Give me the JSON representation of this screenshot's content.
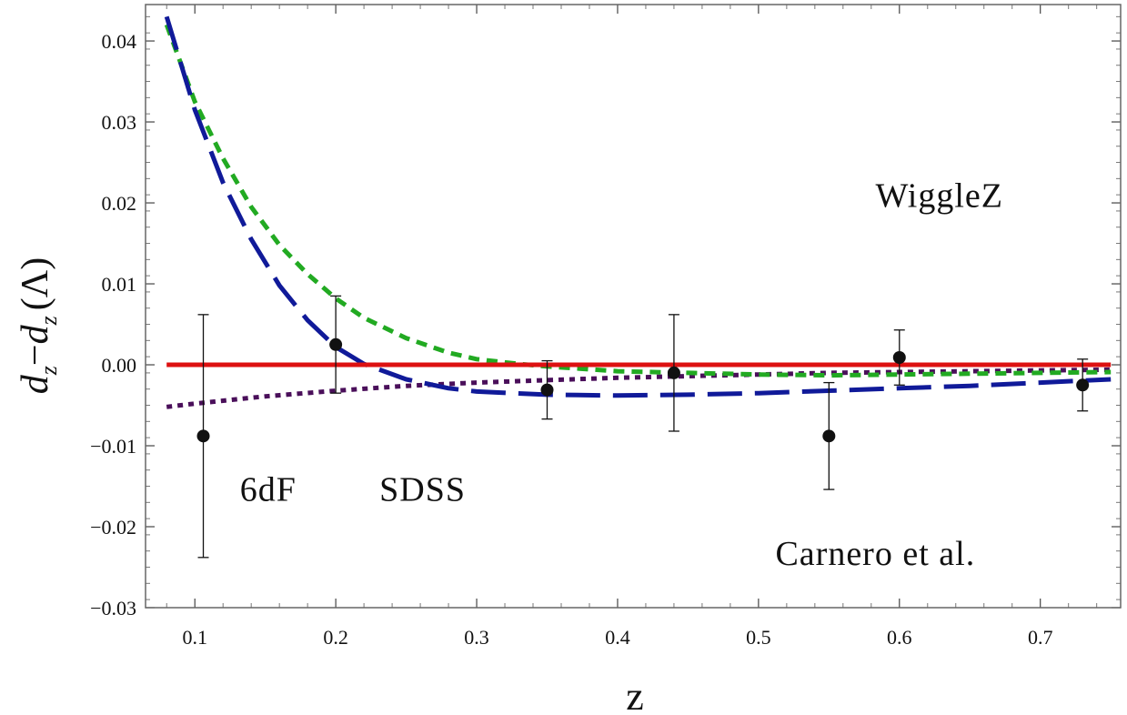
{
  "chart_data": {
    "type": "line",
    "title": "",
    "xlabel": "z",
    "ylabel_parts": {
      "d": "d",
      "sub": "z",
      "minus": "−",
      "lambda": "(Λ)"
    },
    "xlim": [
      0.065,
      0.757
    ],
    "ylim": [
      -0.03,
      0.0445
    ],
    "xticks": [
      0.1,
      0.2,
      0.3,
      0.4,
      0.5,
      0.6,
      0.7
    ],
    "xtick_labels": [
      "0.1",
      "0.2",
      "0.3",
      "0.4",
      "0.5",
      "0.6",
      "0.7"
    ],
    "yticks": [
      0.04,
      0.03,
      0.02,
      0.01,
      0.0,
      -0.01,
      -0.02,
      -0.03
    ],
    "ytick_labels": [
      "0.04",
      "0.03",
      "0.02",
      "0.01",
      "0.00",
      "−0.01",
      "−0.02",
      "−0.03"
    ],
    "series": [
      {
        "name": "LCDM reference",
        "style": "solid",
        "color": "#dd1111",
        "x": [
          0.08,
          0.75
        ],
        "y": [
          0.0,
          0.0
        ]
      },
      {
        "name": "green short-dashed model",
        "style": "short-dash",
        "color": "#22aa22",
        "x": [
          0.08,
          0.1,
          0.12,
          0.14,
          0.16,
          0.18,
          0.2,
          0.22,
          0.25,
          0.28,
          0.3,
          0.33,
          0.35,
          0.4,
          0.45,
          0.5,
          0.55,
          0.6,
          0.65,
          0.7,
          0.75
        ],
        "y": [
          0.042,
          0.0325,
          0.0255,
          0.0195,
          0.0148,
          0.0112,
          0.0082,
          0.0058,
          0.0033,
          0.0015,
          0.0007,
          0.0001,
          -0.0002,
          -0.0008,
          -0.001,
          -0.0012,
          -0.0013,
          -0.0012,
          -0.0011,
          -0.001,
          -0.0009
        ]
      },
      {
        "name": "blue long-dashed model",
        "style": "long-dash",
        "color": "#101a99",
        "x": [
          0.08,
          0.1,
          0.12,
          0.14,
          0.16,
          0.18,
          0.2,
          0.22,
          0.25,
          0.28,
          0.3,
          0.35,
          0.4,
          0.45,
          0.5,
          0.55,
          0.6,
          0.65,
          0.7,
          0.75
        ],
        "y": [
          0.043,
          0.0315,
          0.0225,
          0.0155,
          0.0098,
          0.0055,
          0.0022,
          0.0001,
          -0.0018,
          -0.0029,
          -0.0033,
          -0.0037,
          -0.0038,
          -0.0037,
          -0.0035,
          -0.0032,
          -0.0029,
          -0.0026,
          -0.0022,
          -0.0018
        ]
      },
      {
        "name": "purple dotted model",
        "style": "dotted",
        "color": "#4a0f5a",
        "x": [
          0.08,
          0.1,
          0.15,
          0.2,
          0.25,
          0.3,
          0.35,
          0.4,
          0.45,
          0.5,
          0.55,
          0.6,
          0.65,
          0.7,
          0.75
        ],
        "y": [
          -0.0052,
          -0.0048,
          -0.0039,
          -0.0032,
          -0.0026,
          -0.0022,
          -0.0019,
          -0.0016,
          -0.0014,
          -0.0012,
          -0.001,
          -0.0009,
          -0.0008,
          -0.0007,
          -0.0006
        ]
      }
    ],
    "points": [
      {
        "x": 0.106,
        "y": -0.0088,
        "err": 0.015
      },
      {
        "x": 0.2,
        "y": 0.0025,
        "err": 0.006
      },
      {
        "x": 0.35,
        "y": -0.0031,
        "err": 0.0036
      },
      {
        "x": 0.44,
        "y": -0.001,
        "err": 0.0072
      },
      {
        "x": 0.55,
        "y": -0.0088,
        "err": 0.0066
      },
      {
        "x": 0.6,
        "y": 0.0009,
        "err": 0.0034
      },
      {
        "x": 0.73,
        "y": -0.0025,
        "err": 0.0032
      }
    ],
    "annotations": [
      {
        "text": "WiggleZ",
        "x": 0.583,
        "y": 0.0195
      },
      {
        "text": "6dF",
        "x": 0.132,
        "y": -0.0168
      },
      {
        "text": "SDSS",
        "x": 0.231,
        "y": -0.0168
      },
      {
        "text": "Carnero et al.",
        "x": 0.512,
        "y": -0.0247
      }
    ]
  }
}
